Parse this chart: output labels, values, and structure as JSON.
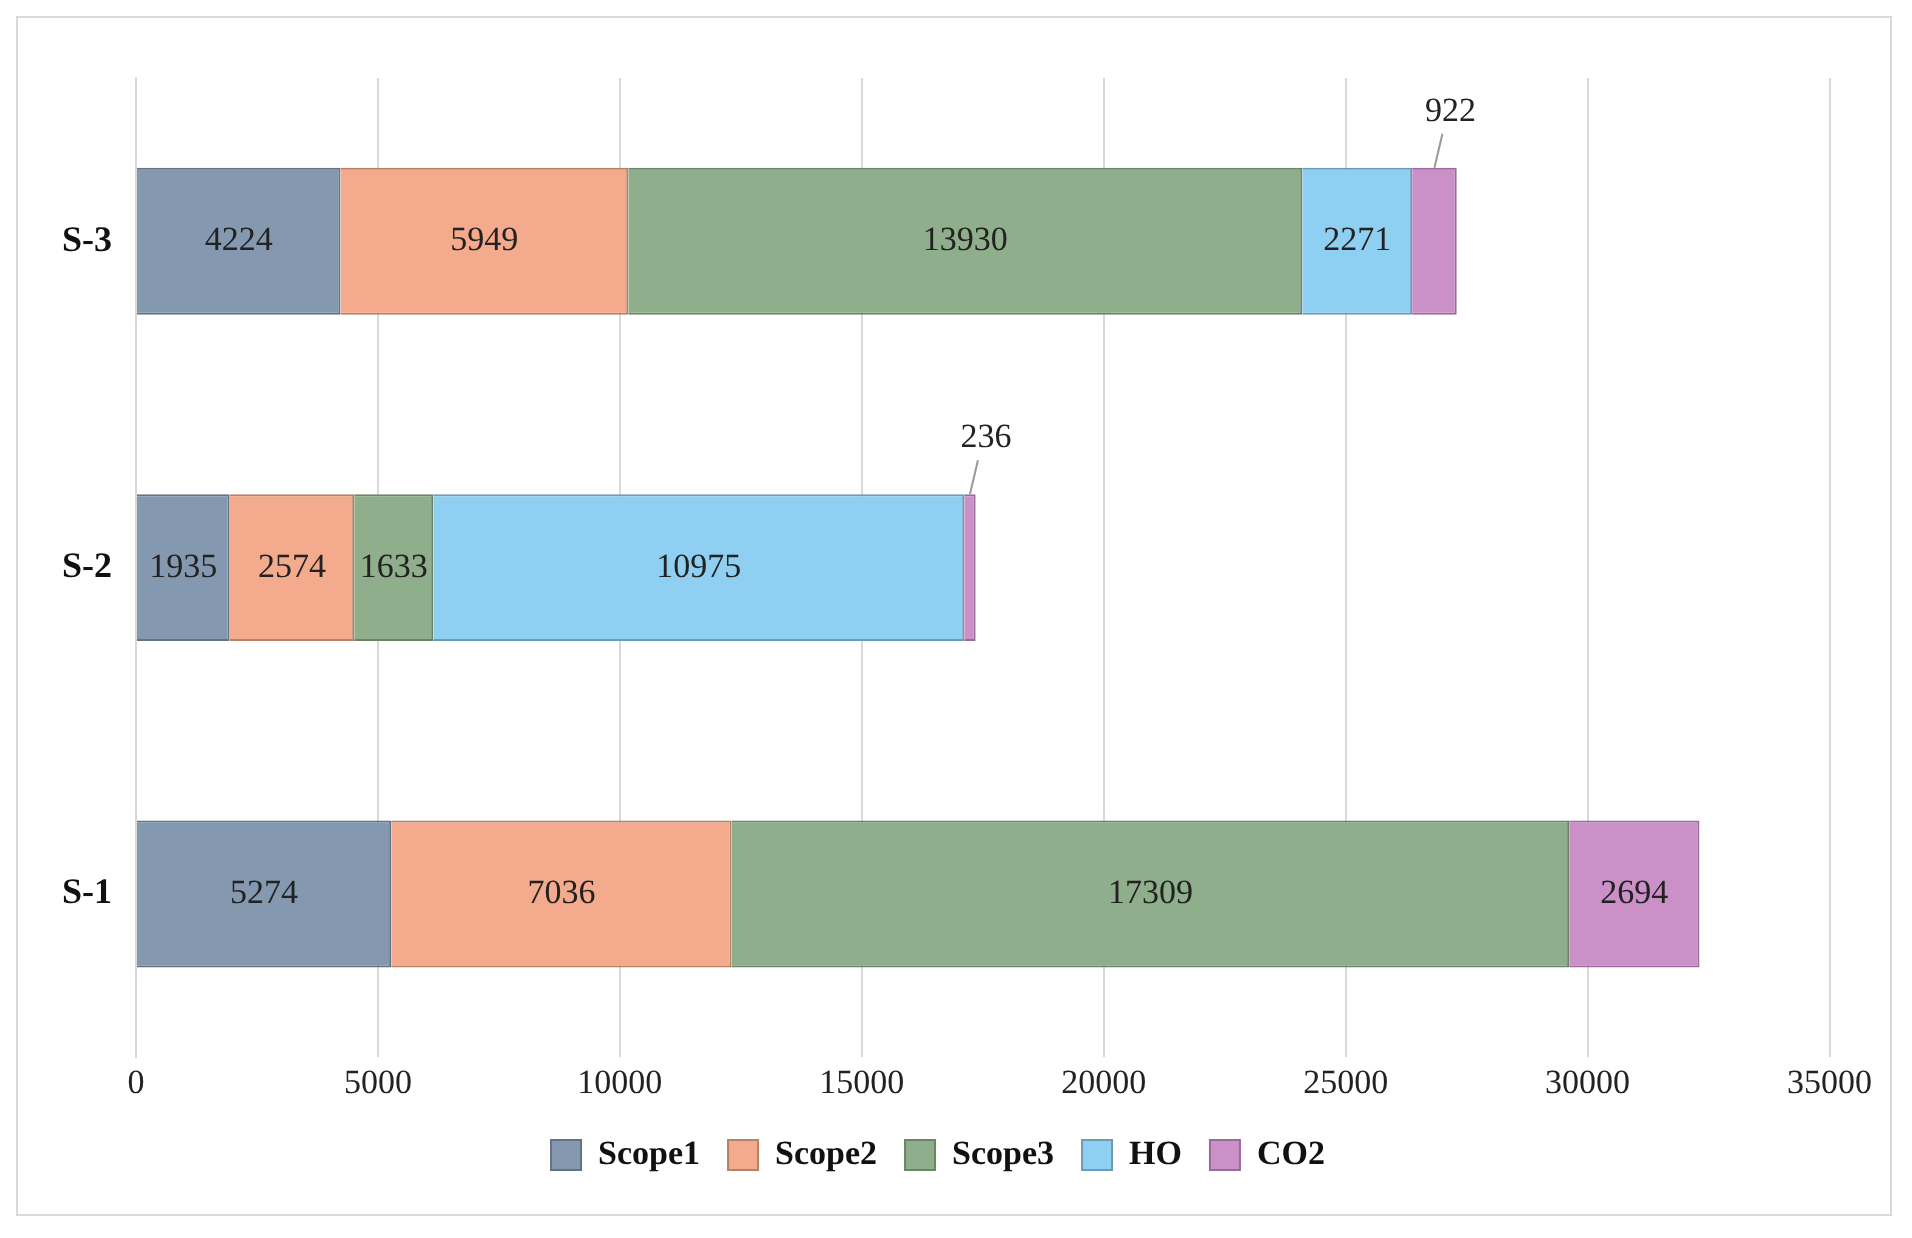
{
  "chart_data": {
    "type": "bar",
    "orientation": "horizontal",
    "stacked": true,
    "categories": [
      "S-3",
      "S-2",
      "S-1"
    ],
    "series": [
      {
        "name": "Scope1",
        "color": "#8499b0",
        "values": [
          4224,
          1935,
          5274
        ]
      },
      {
        "name": "Scope2",
        "color": "#f4aa8c",
        "values": [
          5949,
          2574,
          7036
        ]
      },
      {
        "name": "Scope3",
        "color": "#8fae8b",
        "values": [
          13930,
          1633,
          17309
        ]
      },
      {
        "name": "HO",
        "color": "#8fd0f2",
        "values": [
          2271,
          10975,
          null
        ]
      },
      {
        "name": "CO2",
        "color": "#cc90c9",
        "values": [
          922,
          236,
          2694
        ]
      }
    ],
    "xlim": [
      0,
      35000
    ],
    "xticks": [
      0,
      5000,
      10000,
      15000,
      20000,
      25000,
      30000,
      35000
    ],
    "grid": "x",
    "legend": "bottom",
    "data_labels": true
  }
}
